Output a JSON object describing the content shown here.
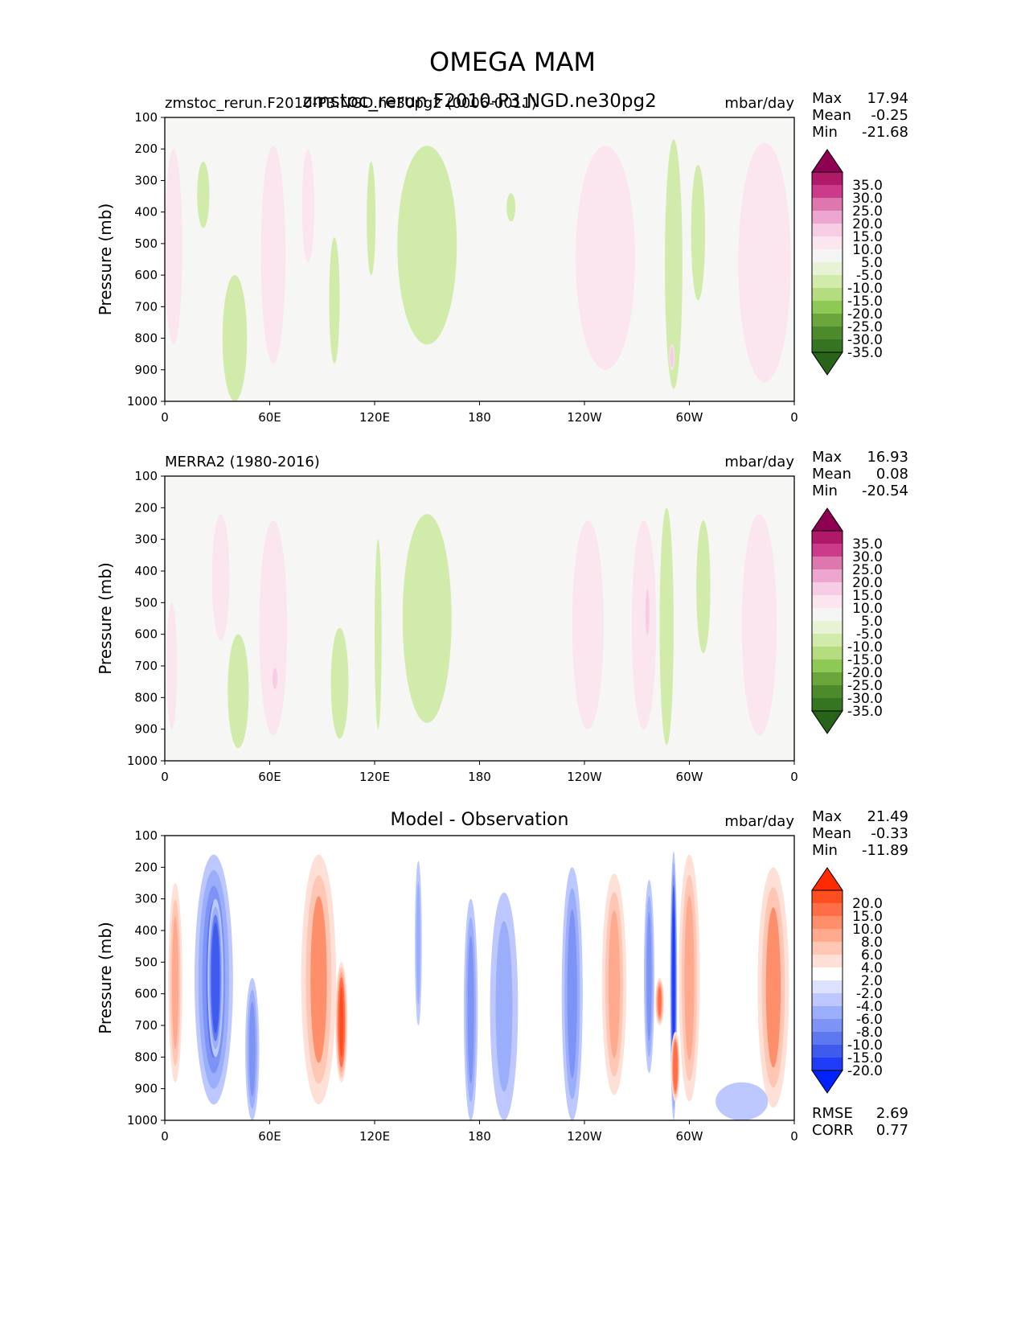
{
  "figure_title": "OMEGA MAM",
  "chart_data": [
    {
      "type": "heatmap",
      "id": "model",
      "left_title": "zmstoc_rerun.F2010-P3.NGD.ne30pg2 (0006-0011)",
      "center_title": "zmstoc_rerun.F2010-P3.NGD.ne30pg2",
      "units": "mbar/day",
      "xlabel": "",
      "ylabel": "Pressure (mb)",
      "xticks": [
        "0",
        "60E",
        "120E",
        "180",
        "120W",
        "60W",
        "0"
      ],
      "yticks": [
        "100",
        "200",
        "300",
        "400",
        "500",
        "600",
        "700",
        "800",
        "900",
        "1000"
      ],
      "xlim": [
        0,
        360
      ],
      "ylim": [
        1000,
        100
      ],
      "stats": [
        [
          "Max",
          "17.94"
        ],
        [
          "Mean",
          "-0.25"
        ],
        [
          "Min",
          "-21.68"
        ]
      ],
      "colorbar": {
        "labels": [
          "35.0",
          "30.0",
          "25.0",
          "20.0",
          "15.0",
          "10.0",
          "5.0",
          "-5.0",
          "-10.0",
          "-15.0",
          "-20.0",
          "-25.0",
          "-30.0",
          "-35.0"
        ],
        "colors": [
          "#8e0152",
          "#b01868",
          "#cc3a8a",
          "#de77ae",
          "#eda6cf",
          "#f7cde6",
          "#fbe6f0",
          "#f5f5f5",
          "#e8f3d6",
          "#d0ebaa",
          "#b3dd7e",
          "#8fc955",
          "#6aa63b",
          "#4d8a2b",
          "#357421",
          "#276419"
        ]
      },
      "features": [
        {
          "lon": 5,
          "p0": 200,
          "p1": 820,
          "w": 10,
          "v": 8
        },
        {
          "lon": 22,
          "p0": 240,
          "p1": 450,
          "w": 7,
          "v": -6
        },
        {
          "lon": 40,
          "p0": 600,
          "p1": 1000,
          "w": 14,
          "v": -6
        },
        {
          "lon": 62,
          "p0": 190,
          "p1": 880,
          "w": 14,
          "v": 7
        },
        {
          "lon": 82,
          "p0": 200,
          "p1": 560,
          "w": 7,
          "v": 6
        },
        {
          "lon": 97,
          "p0": 480,
          "p1": 880,
          "w": 6,
          "v": -7
        },
        {
          "lon": 118,
          "p0": 240,
          "p1": 600,
          "w": 5,
          "v": -5
        },
        {
          "lon": 150,
          "p0": 190,
          "p1": 820,
          "w": 34,
          "v": -7
        },
        {
          "lon": 147,
          "p0": 320,
          "p1": 500,
          "w": 8,
          "v": -8
        },
        {
          "lon": 198,
          "p0": 340,
          "p1": 430,
          "w": 5,
          "v": -6
        },
        {
          "lon": 252,
          "p0": 190,
          "p1": 900,
          "w": 34,
          "v": 7
        },
        {
          "lon": 291,
          "p0": 170,
          "p1": 960,
          "w": 10,
          "v": -9
        },
        {
          "lon": 290,
          "p0": 820,
          "p1": 900,
          "w": 3,
          "v": 14
        },
        {
          "lon": 305,
          "p0": 250,
          "p1": 680,
          "w": 8,
          "v": -5
        },
        {
          "lon": 343,
          "p0": 180,
          "p1": 940,
          "w": 30,
          "v": 7
        }
      ]
    },
    {
      "type": "heatmap",
      "id": "obs",
      "left_title": "MERRA2 (1980-2016)",
      "center_title": "",
      "units": "mbar/day",
      "xlabel": "",
      "ylabel": "Pressure (mb)",
      "xticks": [
        "0",
        "60E",
        "120E",
        "180",
        "120W",
        "60W",
        "0"
      ],
      "yticks": [
        "100",
        "200",
        "300",
        "400",
        "500",
        "600",
        "700",
        "800",
        "900",
        "1000"
      ],
      "xlim": [
        0,
        360
      ],
      "ylim": [
        1000,
        100
      ],
      "stats": [
        [
          "Max",
          "16.93"
        ],
        [
          "Mean",
          "0.08"
        ],
        [
          "Min",
          "-20.54"
        ]
      ],
      "colorbar": {
        "labels": [
          "35.0",
          "30.0",
          "25.0",
          "20.0",
          "15.0",
          "10.0",
          "5.0",
          "-5.0",
          "-10.0",
          "-15.0",
          "-20.0",
          "-25.0",
          "-30.0",
          "-35.0"
        ],
        "colors": [
          "#8e0152",
          "#b01868",
          "#cc3a8a",
          "#de77ae",
          "#eda6cf",
          "#f7cde6",
          "#fbe6f0",
          "#f5f5f5",
          "#e8f3d6",
          "#d0ebaa",
          "#b3dd7e",
          "#8fc955",
          "#6aa63b",
          "#4d8a2b",
          "#357421",
          "#276419"
        ]
      },
      "features": [
        {
          "lon": 4,
          "p0": 500,
          "p1": 900,
          "w": 6,
          "v": 6
        },
        {
          "lon": 32,
          "p0": 220,
          "p1": 620,
          "w": 10,
          "v": 7
        },
        {
          "lon": 42,
          "p0": 600,
          "p1": 960,
          "w": 12,
          "v": -7
        },
        {
          "lon": 62,
          "p0": 240,
          "p1": 920,
          "w": 16,
          "v": 8
        },
        {
          "lon": 63,
          "p0": 700,
          "p1": 780,
          "w": 4,
          "v": 14
        },
        {
          "lon": 100,
          "p0": 580,
          "p1": 930,
          "w": 10,
          "v": -9
        },
        {
          "lon": 122,
          "p0": 300,
          "p1": 900,
          "w": 4,
          "v": -5
        },
        {
          "lon": 150,
          "p0": 220,
          "p1": 880,
          "w": 28,
          "v": -6
        },
        {
          "lon": 242,
          "p0": 240,
          "p1": 900,
          "w": 18,
          "v": 7
        },
        {
          "lon": 274,
          "p0": 240,
          "p1": 900,
          "w": 14,
          "v": 8
        },
        {
          "lon": 276,
          "p0": 420,
          "p1": 640,
          "w": 5,
          "v": 12
        },
        {
          "lon": 287,
          "p0": 200,
          "p1": 950,
          "w": 8,
          "v": -9
        },
        {
          "lon": 308,
          "p0": 240,
          "p1": 660,
          "w": 8,
          "v": -5
        },
        {
          "lon": 340,
          "p0": 220,
          "p1": 920,
          "w": 20,
          "v": 7
        }
      ]
    },
    {
      "type": "heatmap",
      "id": "diff",
      "left_title": "",
      "center_title": "Model - Observation",
      "units": "mbar/day",
      "xlabel": "",
      "ylabel": "Pressure (mb)",
      "xticks": [
        "0",
        "60E",
        "120E",
        "180",
        "120W",
        "60W",
        "0"
      ],
      "yticks": [
        "100",
        "200",
        "300",
        "400",
        "500",
        "600",
        "700",
        "800",
        "900",
        "1000"
      ],
      "xlim": [
        0,
        360
      ],
      "ylim": [
        1000,
        100
      ],
      "stats": [
        [
          "Max",
          "21.49"
        ],
        [
          "Mean",
          "-0.33"
        ],
        [
          "Min",
          "-11.89"
        ]
      ],
      "bottom_stats": [
        [
          "RMSE",
          "2.69"
        ],
        [
          "CORR",
          "0.77"
        ]
      ],
      "colorbar": {
        "labels": [
          "20.0",
          "15.0",
          "10.0",
          "8.0",
          "6.0",
          "4.0",
          "2.0",
          "-2.0",
          "-4.0",
          "-6.0",
          "-8.0",
          "-10.0",
          "-15.0",
          "-20.0"
        ],
        "colors": [
          "#ff2a00",
          "#ff4d22",
          "#ff6f47",
          "#ff8f6b",
          "#ffaa8e",
          "#ffc6b4",
          "#ffe0d6",
          "#ffffff",
          "#dde3ff",
          "#bcc8ff",
          "#9aaefb",
          "#7d93f6",
          "#5e78f0",
          "#3e5bee",
          "#1f3df8",
          "#0022ff"
        ]
      },
      "features": [
        {
          "lon": 6,
          "p0": 250,
          "p1": 880,
          "w": 8,
          "v": 7
        },
        {
          "lon": 28,
          "p0": 160,
          "p1": 950,
          "w": 22,
          "v": -9
        },
        {
          "lon": 29,
          "p0": 300,
          "p1": 800,
          "w": 9,
          "v": -14
        },
        {
          "lon": 50,
          "p0": 550,
          "p1": 1000,
          "w": 8,
          "v": -6
        },
        {
          "lon": 88,
          "p0": 160,
          "p1": 950,
          "w": 20,
          "v": 8
        },
        {
          "lon": 101,
          "p0": 500,
          "p1": 880,
          "w": 7,
          "v": 16
        },
        {
          "lon": 145,
          "p0": 180,
          "p1": 700,
          "w": 4,
          "v": -4
        },
        {
          "lon": 175,
          "p0": 300,
          "p1": 1000,
          "w": 8,
          "v": -6
        },
        {
          "lon": 194,
          "p0": 280,
          "p1": 1000,
          "w": 16,
          "v": -5
        },
        {
          "lon": 233,
          "p0": 200,
          "p1": 1000,
          "w": 12,
          "v": -7
        },
        {
          "lon": 257,
          "p0": 220,
          "p1": 920,
          "w": 14,
          "v": 7
        },
        {
          "lon": 277,
          "p0": 240,
          "p1": 850,
          "w": 6,
          "v": -6
        },
        {
          "lon": 283,
          "p0": 550,
          "p1": 700,
          "w": 5,
          "v": 12
        },
        {
          "lon": 291,
          "p0": 150,
          "p1": 1000,
          "w": 4,
          "v": -16
        },
        {
          "lon": 292,
          "p0": 720,
          "p1": 940,
          "w": 5,
          "v": 14
        },
        {
          "lon": 300,
          "p0": 160,
          "p1": 940,
          "w": 12,
          "v": 6
        },
        {
          "lon": 348,
          "p0": 200,
          "p1": 960,
          "w": 18,
          "v": 8
        },
        {
          "lon": 330,
          "p0": 880,
          "p1": 1000,
          "w": 30,
          "v": -3
        }
      ]
    }
  ]
}
